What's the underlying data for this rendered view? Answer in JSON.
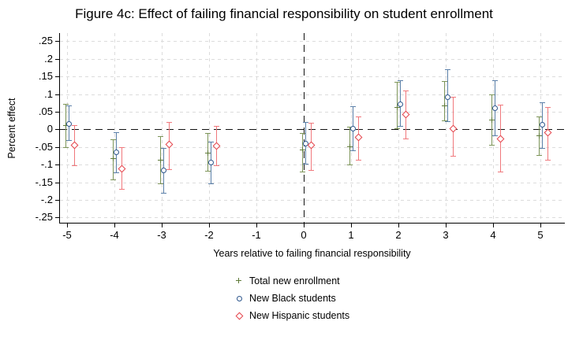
{
  "chart_data": {
    "type": "scatter",
    "subtype": "coefficient-plot-with-error-bars",
    "title": "Figure 4c: Effect of failing financial responsibility on student enrollment",
    "xlabel": "Years relative to failing financial responsibility",
    "ylabel": "Percent effect",
    "xlim": [
      -5.17,
      5.5
    ],
    "ylim": [
      -0.265,
      0.273
    ],
    "x_ticks": [
      -5,
      -4,
      -3,
      -2,
      -1,
      0,
      1,
      2,
      3,
      4,
      5
    ],
    "x_tick_labels": [
      "-5",
      "-4",
      "-3",
      "-2",
      "-1",
      "0",
      "1",
      "2",
      "3",
      "4",
      "5"
    ],
    "y_ticks": [
      0.25,
      0.2,
      0.15,
      0.1,
      0.05,
      0,
      -0.05,
      -0.1,
      -0.15,
      -0.2,
      -0.25
    ],
    "y_tick_labels": [
      ".25",
      ".2",
      ".15",
      ".1",
      ".05",
      "0",
      "-.05",
      "-.1",
      "-.15",
      "-.2",
      "-.25"
    ],
    "grid": true,
    "reference_lines": {
      "horizontal_y": 0,
      "vertical_x": 0,
      "style": "dashed",
      "color": "#111111"
    },
    "legend_position": "bottom-center",
    "series": [
      {
        "name": "Total new enrollment",
        "marker": "plus",
        "color": "#5f7a38",
        "bar_color": "#7c9458",
        "points": [
          {
            "x": -5,
            "y": 0.011,
            "lo": -0.051,
            "hi": 0.073
          },
          {
            "x": -4,
            "y": -0.082,
            "lo": -0.143,
            "hi": -0.028
          },
          {
            "x": -3,
            "y": -0.087,
            "lo": -0.154,
            "hi": -0.02
          },
          {
            "x": -2,
            "y": -0.066,
            "lo": -0.118,
            "hi": -0.011
          },
          {
            "x": 0,
            "y": -0.058,
            "lo": -0.12,
            "hi": -0.011
          },
          {
            "x": 1,
            "y": -0.048,
            "lo": -0.1,
            "hi": 0.007
          },
          {
            "x": 2,
            "y": 0.064,
            "lo": 0.002,
            "hi": 0.134
          },
          {
            "x": 3,
            "y": 0.068,
            "lo": 0.025,
            "hi": 0.136
          },
          {
            "x": 4,
            "y": 0.028,
            "lo": -0.045,
            "hi": 0.1
          },
          {
            "x": 5,
            "y": -0.018,
            "lo": -0.072,
            "hi": 0.037
          }
        ]
      },
      {
        "name": "New Black students",
        "marker": "circle",
        "color": "#2d568c",
        "bar_color": "#5a7fa8",
        "points": [
          {
            "x": -5,
            "y": 0.017,
            "lo": -0.031,
            "hi": 0.068
          },
          {
            "x": -4,
            "y": -0.065,
            "lo": -0.123,
            "hi": -0.009
          },
          {
            "x": -3,
            "y": -0.115,
            "lo": -0.18,
            "hi": -0.054
          },
          {
            "x": -2,
            "y": -0.093,
            "lo": -0.154,
            "hi": -0.034
          },
          {
            "x": 0,
            "y": -0.039,
            "lo": -0.098,
            "hi": 0.021
          },
          {
            "x": 1,
            "y": 0.003,
            "lo": -0.059,
            "hi": 0.065
          },
          {
            "x": 2,
            "y": 0.073,
            "lo": 0.01,
            "hi": 0.14
          },
          {
            "x": 3,
            "y": 0.093,
            "lo": 0.022,
            "hi": 0.17
          },
          {
            "x": 4,
            "y": 0.06,
            "lo": -0.017,
            "hi": 0.138
          },
          {
            "x": 5,
            "y": 0.015,
            "lo": -0.052,
            "hi": 0.077
          }
        ]
      },
      {
        "name": "New Hispanic students",
        "marker": "diamond",
        "color": "#e4424a",
        "bar_color": "#f0787c",
        "points": [
          {
            "x": -5,
            "y": -0.045,
            "lo": -0.102,
            "hi": 0.012
          },
          {
            "x": -4,
            "y": -0.112,
            "lo": -0.169,
            "hi": -0.05
          },
          {
            "x": -3,
            "y": -0.042,
            "lo": -0.113,
            "hi": 0.021
          },
          {
            "x": -2,
            "y": -0.046,
            "lo": -0.102,
            "hi": 0.01
          },
          {
            "x": 0,
            "y": -0.045,
            "lo": -0.115,
            "hi": 0.019
          },
          {
            "x": 1,
            "y": -0.022,
            "lo": -0.087,
            "hi": 0.037
          },
          {
            "x": 2,
            "y": 0.042,
            "lo": -0.026,
            "hi": 0.11
          },
          {
            "x": 3,
            "y": 0.004,
            "lo": -0.076,
            "hi": 0.092
          },
          {
            "x": 4,
            "y": -0.026,
            "lo": -0.119,
            "hi": 0.07
          },
          {
            "x": 5,
            "y": -0.008,
            "lo": -0.086,
            "hi": 0.064
          }
        ]
      }
    ]
  }
}
